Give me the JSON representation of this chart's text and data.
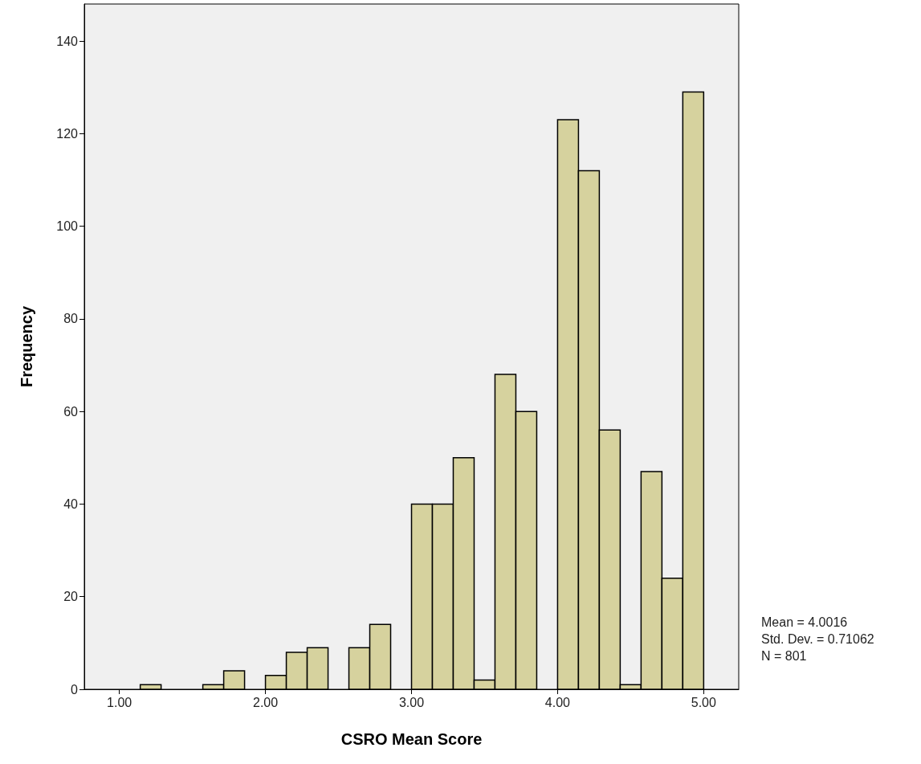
{
  "chart_data": {
    "type": "histogram",
    "xlabel": "CSRO Mean Score",
    "ylabel": "Frequency",
    "bins": [
      1,
      1.1429,
      1.2857,
      1.4286,
      1.5714,
      1.7143,
      1.8571,
      2,
      2.1429,
      2.2857,
      2.4286,
      2.5714,
      2.7143,
      2.8571,
      3,
      3.1429,
      3.2857,
      3.4286,
      3.5714,
      3.7143,
      3.8571,
      4,
      4.1429,
      4.2857,
      4.4286,
      4.5714,
      4.7143,
      4.8571,
      5
    ],
    "values": [
      0,
      1,
      0,
      0,
      1,
      4,
      0,
      3,
      8,
      9,
      0,
      9,
      14,
      0,
      40,
      40,
      50,
      2,
      68,
      60,
      0,
      123,
      112,
      56,
      1,
      47,
      24,
      129
    ],
    "color": "#d6d29e",
    "xlim": [
      0.76,
      5.24
    ],
    "xticks": [
      {
        "value": 1,
        "label": "1.00"
      },
      {
        "value": 2,
        "label": "2.00"
      },
      {
        "value": 3,
        "label": "3.00"
      },
      {
        "value": 4,
        "label": "4.00"
      },
      {
        "value": 5,
        "label": "5.00"
      }
    ],
    "ylim": [
      0,
      148
    ],
    "yticks": [
      0,
      20,
      40,
      60,
      80,
      100,
      120,
      140
    ],
    "annotations": [
      "Mean = 4.0016",
      "Std. Dev. = 0.71062",
      "N = 801"
    ]
  }
}
